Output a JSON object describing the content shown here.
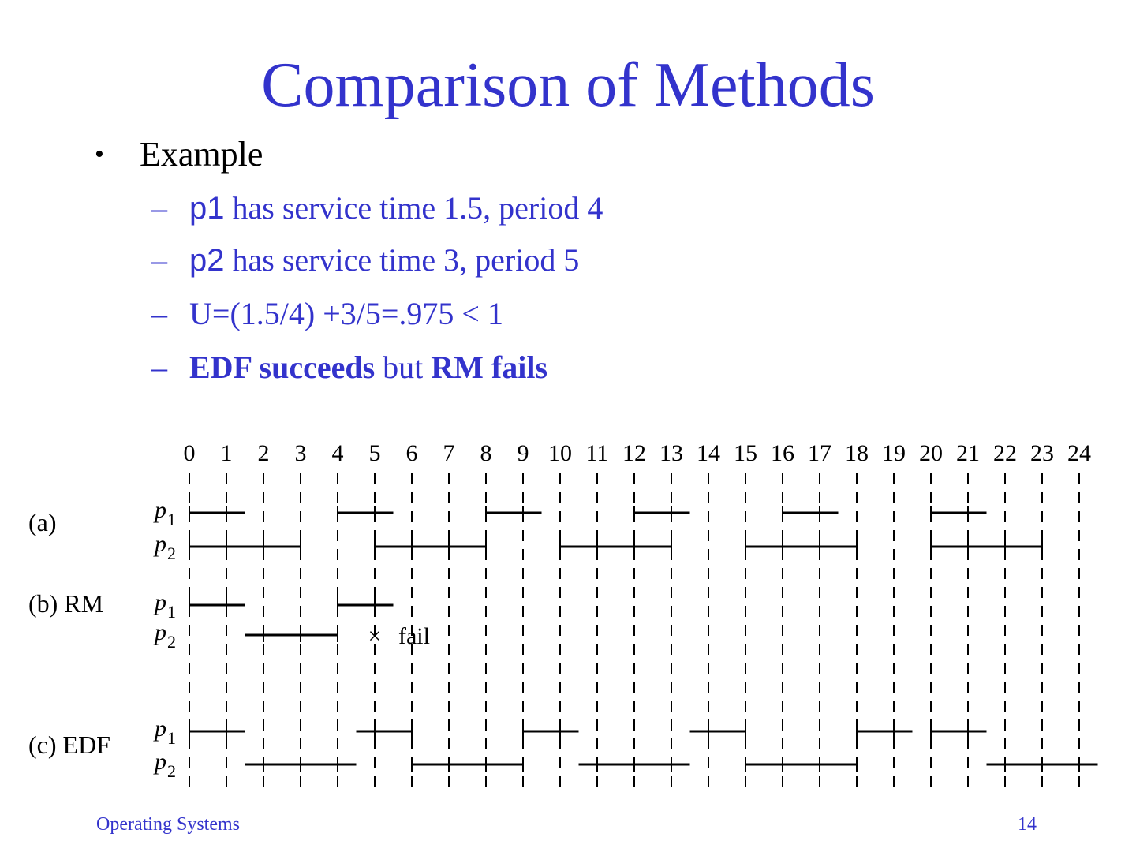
{
  "slide": {
    "title": "Comparison of Methods",
    "bullet": "Example",
    "items": [
      {
        "id": "p1",
        "lead": "p1",
        "rest": " has service time 1.5, period 4"
      },
      {
        "id": "p2",
        "lead": "p2",
        "rest": " has service time 3, period 5"
      },
      {
        "id": "u",
        "text": "U=(1.5/4) +3/5=.975 < 1"
      },
      {
        "id": "concl",
        "bold1": "EDF succeeds",
        "mid": " but ",
        "bold2": "RM fails"
      }
    ],
    "footer_left": "Operating Systems",
    "page_number": "14"
  },
  "diagram": {
    "time_ticks": [
      "0",
      "1",
      "2",
      "3",
      "4",
      "5",
      "6",
      "7",
      "8",
      "9",
      "10",
      "11",
      "12",
      "13",
      "14",
      "15",
      "16",
      "17",
      "18",
      "19",
      "20",
      "21",
      "22",
      "23",
      "24"
    ],
    "sections": [
      {
        "label": "(a)",
        "rows": [
          {
            "proc": "p",
            "sub": "1",
            "segments": [
              [
                0,
                1.5
              ],
              [
                4,
                5.5
              ],
              [
                8,
                9.5
              ],
              [
                12,
                13.5
              ],
              [
                16,
                17.5
              ],
              [
                20,
                21.5
              ]
            ]
          },
          {
            "proc": "p",
            "sub": "2",
            "segments": [
              [
                0,
                3
              ],
              [
                5,
                8
              ],
              [
                10,
                13
              ],
              [
                15,
                18
              ],
              [
                20,
                23
              ]
            ]
          }
        ]
      },
      {
        "label": "(b) RM",
        "rows": [
          {
            "proc": "p",
            "sub": "1",
            "segments": [
              [
                0,
                1.5
              ],
              [
                4,
                5.5
              ]
            ]
          },
          {
            "proc": "p",
            "sub": "2",
            "segments": [
              [
                1.5,
                4
              ]
            ]
          }
        ],
        "annotation": "fail",
        "fail_time": 5
      },
      {
        "label": "(c) EDF",
        "rows": [
          {
            "proc": "p",
            "sub": "1",
            "segments": [
              [
                0,
                1.5
              ],
              [
                4.5,
                6
              ],
              [
                9,
                10.5
              ],
              [
                13.5,
                15
              ],
              [
                18,
                19.5
              ],
              [
                20,
                21.5
              ]
            ]
          },
          {
            "proc": "p",
            "sub": "2",
            "segments": [
              [
                1.5,
                4.5
              ],
              [
                6,
                9
              ],
              [
                10.5,
                13.5
              ],
              [
                15,
                18
              ],
              [
                21.5,
                24.5
              ]
            ]
          }
        ]
      }
    ]
  }
}
